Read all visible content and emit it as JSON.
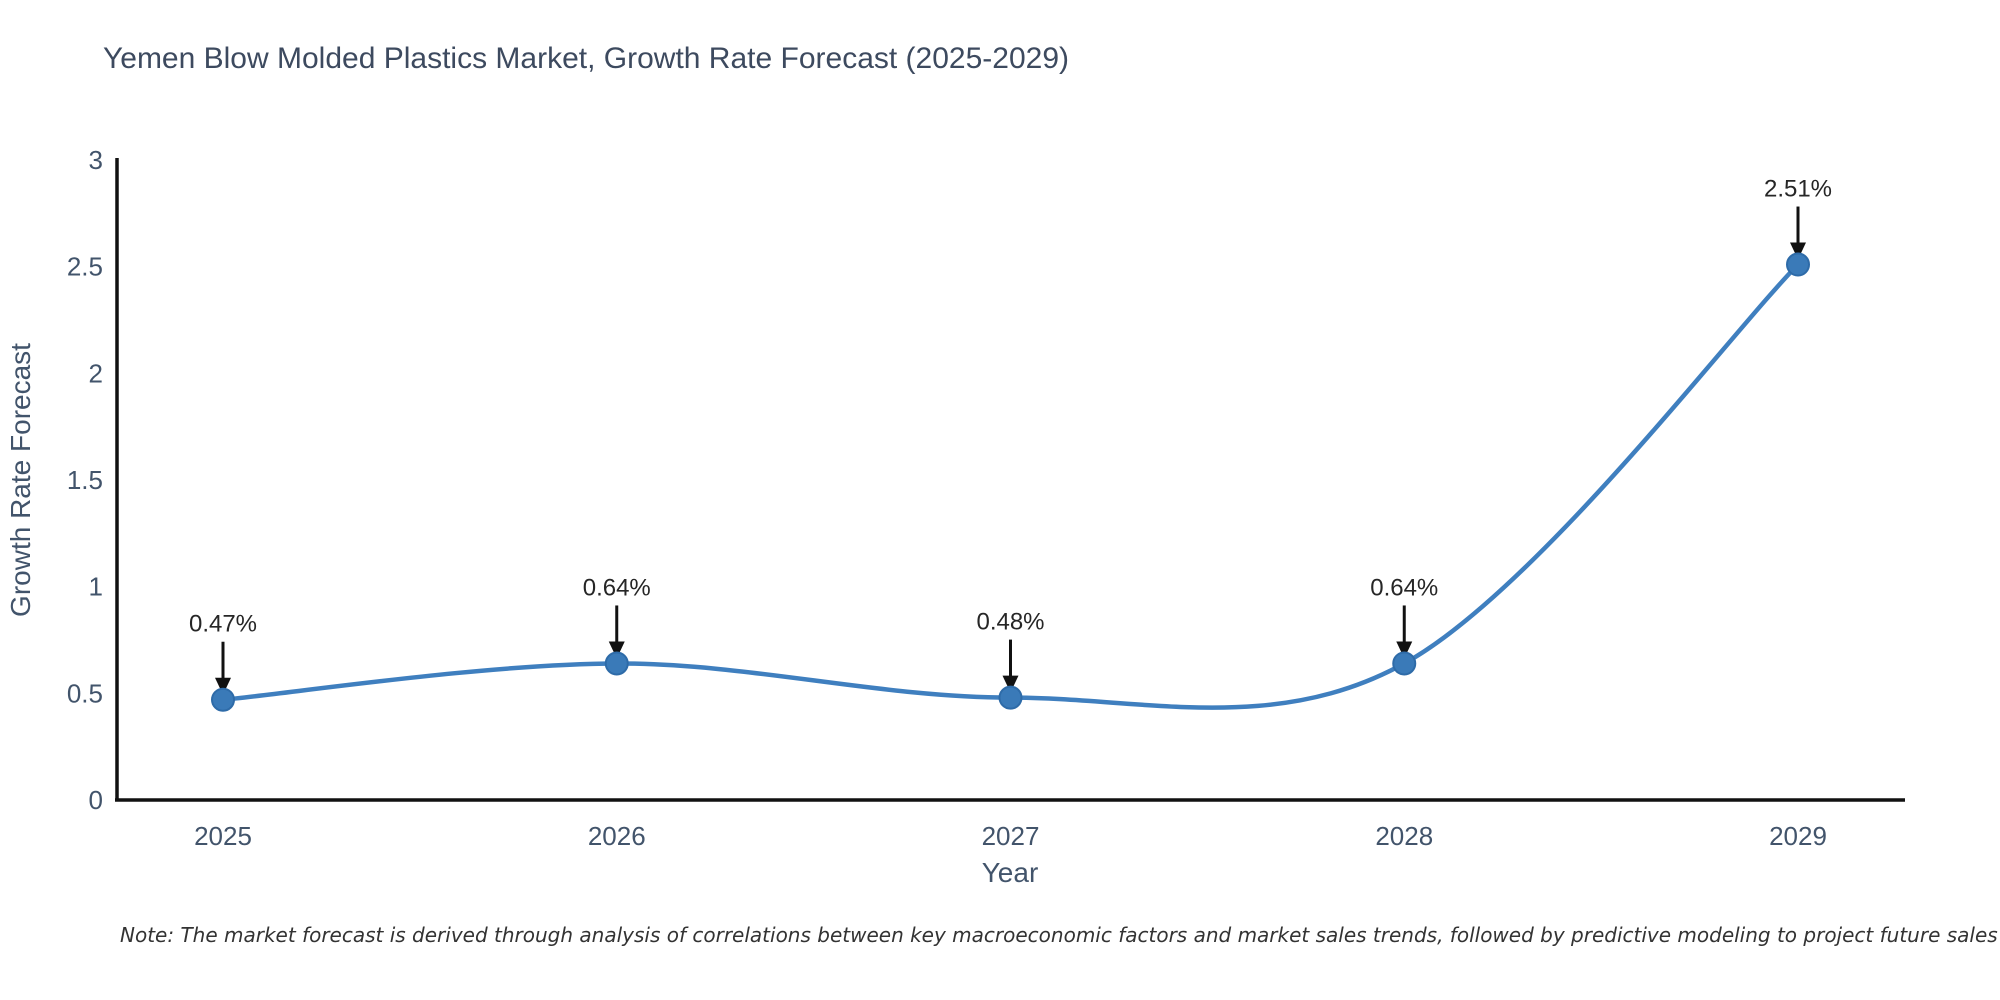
{
  "page": {
    "background": "#ffffff"
  },
  "chart_data": {
    "type": "line",
    "title": "Yemen Blow Molded Plastics Market, Growth Rate Forecast (2025-2029)",
    "xlabel": "Year",
    "ylabel": "Growth Rate Forecast",
    "categories": [
      "2025",
      "2026",
      "2027",
      "2028",
      "2029"
    ],
    "series": [
      {
        "name": "Growth Rate Forecast",
        "values": [
          0.47,
          0.64,
          0.48,
          0.64,
          2.51
        ],
        "point_labels": [
          "0.47%",
          "0.64%",
          "0.48%",
          "0.64%",
          "2.51%"
        ]
      }
    ],
    "ylim": [
      0,
      3
    ],
    "y_ticks": [
      0,
      0.5,
      1,
      1.5,
      2,
      2.5,
      3
    ],
    "y_tick_labels": [
      "0",
      "0.5",
      "1",
      "1.5",
      "2",
      "2.5",
      "3"
    ],
    "grid": false,
    "legend": "none",
    "line_shape": "spline",
    "colors": {
      "line": "#3f7fbf",
      "marker_fill": "#3a7ab8",
      "marker_edge": "#2e6ba8",
      "axis_line": "#111111",
      "tick_text": "#42546b",
      "title_text": "#3d4a5f",
      "annotation": "#262626",
      "note": "#333333"
    },
    "note": "Note: The market forecast is derived through analysis of correlations between key macroeconomic factors and market sales trends, followed by predictive modeling to project future sales"
  }
}
